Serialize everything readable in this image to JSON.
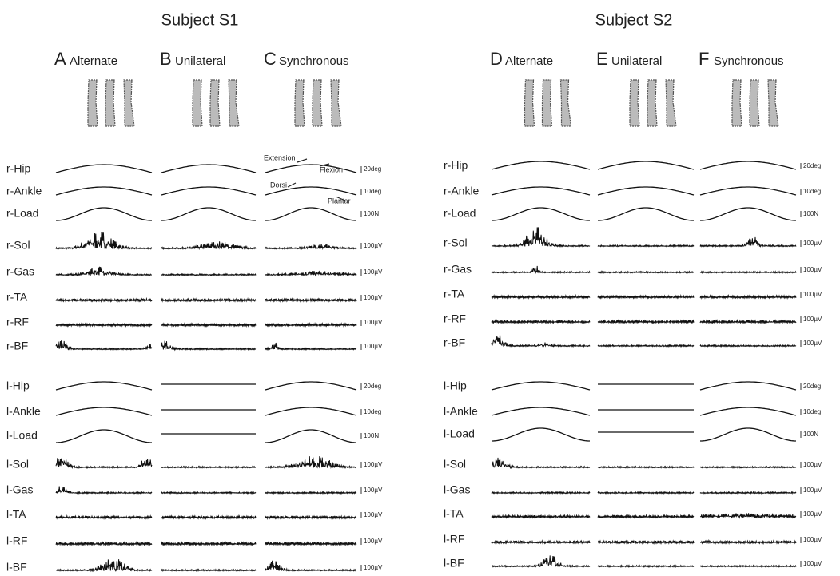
{
  "subjects": [
    {
      "title": "Subject S1",
      "conditions": [
        {
          "letter": "A",
          "name": "Alternate"
        },
        {
          "letter": "B",
          "name": "Unilateral"
        },
        {
          "letter": "C",
          "name": "Synchronous"
        }
      ],
      "annotations": [
        "Extension",
        "Flexion",
        "Dorsi",
        "Plantar"
      ],
      "rows": [
        {
          "label": "r-Hip",
          "scale": "20deg"
        },
        {
          "label": "r-Ankle",
          "scale": "10deg"
        },
        {
          "label": "r-Load",
          "scale": "100N"
        },
        {
          "label": "r-Sol",
          "scale": "100µV"
        },
        {
          "label": "r-Gas",
          "scale": "100µV"
        },
        {
          "label": "r-TA",
          "scale": "100µV"
        },
        {
          "label": "r-RF",
          "scale": "100µV"
        },
        {
          "label": "r-BF",
          "scale": "100µV"
        },
        {
          "label": "l-Hip",
          "scale": "20deg"
        },
        {
          "label": "l-Ankle",
          "scale": "10deg"
        },
        {
          "label": "l-Load",
          "scale": "100N"
        },
        {
          "label": "l-Sol",
          "scale": "100µV"
        },
        {
          "label": "l-Gas",
          "scale": "100µV"
        },
        {
          "label": "l-TA",
          "scale": "100µV"
        },
        {
          "label": "l-RF",
          "scale": "100µV"
        },
        {
          "label": "l-BF",
          "scale": "100µV"
        }
      ]
    },
    {
      "title": "Subject S2",
      "conditions": [
        {
          "letter": "D",
          "name": "Alternate"
        },
        {
          "letter": "E",
          "name": "Unilateral"
        },
        {
          "letter": "F",
          "name": "Synchronous"
        }
      ],
      "rows": [
        {
          "label": "r-Hip",
          "scale": "20deg"
        },
        {
          "label": "r-Ankle",
          "scale": "10deg"
        },
        {
          "label": "r-Load",
          "scale": "100N"
        },
        {
          "label": "r-Sol",
          "scale": "100µV"
        },
        {
          "label": "r-Gas",
          "scale": "100µV"
        },
        {
          "label": "r-TA",
          "scale": "100µV"
        },
        {
          "label": "r-RF",
          "scale": "100µV"
        },
        {
          "label": "r-BF",
          "scale": "100µV"
        },
        {
          "label": "l-Hip",
          "scale": "20deg"
        },
        {
          "label": "l-Ankle",
          "scale": "10deg"
        },
        {
          "label": "l-Load",
          "scale": "100N"
        },
        {
          "label": "l-Sol",
          "scale": "100µV"
        },
        {
          "label": "l-Gas",
          "scale": "100µV"
        },
        {
          "label": "l-TA",
          "scale": "100µV"
        },
        {
          "label": "l-RF",
          "scale": "100µV"
        },
        {
          "label": "l-BF",
          "scale": "100µV"
        }
      ]
    }
  ]
}
